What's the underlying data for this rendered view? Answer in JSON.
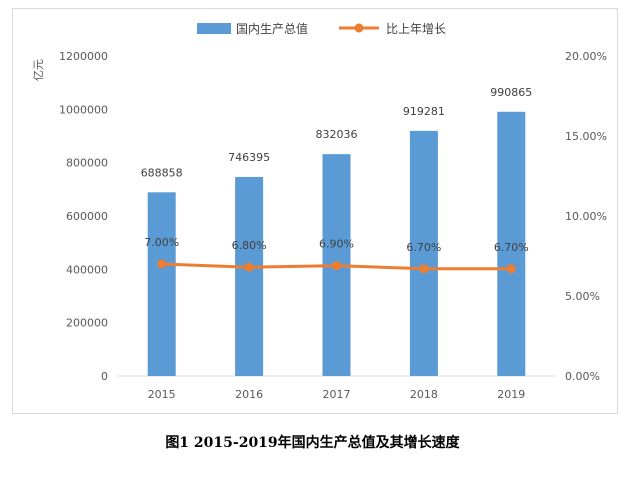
{
  "chart_data": {
    "type": "bar",
    "categories": [
      "2015",
      "2016",
      "2017",
      "2018",
      "2019"
    ],
    "series": [
      {
        "name": "国内生产总值",
        "type": "bar",
        "axis": "left",
        "values": [
          688858,
          746395,
          832036,
          919281,
          990865
        ],
        "labels": [
          "688858",
          "746395",
          "832036",
          "919281",
          "990865"
        ],
        "color": "#5b9bd5"
      },
      {
        "name": "比上年增长",
        "type": "line",
        "axis": "right",
        "values": [
          0.07,
          0.068,
          0.069,
          0.067,
          0.067
        ],
        "labels": [
          "7.00%",
          "6.80%",
          "6.90%",
          "6.70%",
          "6.70%"
        ],
        "color": "#ed7d31"
      }
    ],
    "ylabel": "亿元",
    "ylim": [
      0,
      1200000
    ],
    "yticks": [
      "0",
      "200000",
      "400000",
      "600000",
      "800000",
      "1000000",
      "1200000"
    ],
    "y2lim": [
      0,
      0.2
    ],
    "y2ticks": [
      "0.00%",
      "5.00%",
      "10.00%",
      "15.00%",
      "20.00%"
    ],
    "grid": false,
    "legend_position": "top"
  },
  "caption": "图1 2015-2019年国内生产总值及其增长速度"
}
